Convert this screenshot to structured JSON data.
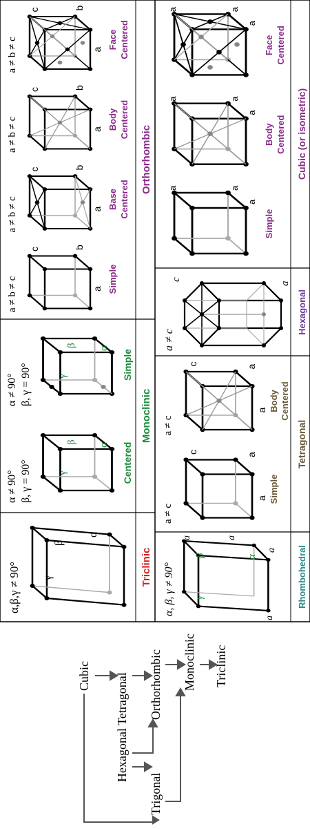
{
  "lattice_table": {
    "triclinic": {
      "name": "Triclinic",
      "condition": "α,β,γ ≠ 90°",
      "angles": {
        "a": "α",
        "b": "β",
        "g": "γ"
      },
      "color": "#d22222"
    },
    "monoclinic": {
      "name": "Monoclinic",
      "color": "#1a8a3a",
      "cells": [
        {
          "label": "Centered",
          "condition_1": "α ≠ 90°",
          "condition_2": "β, γ = 90°",
          "angles": {
            "a": "α",
            "b": "β",
            "g": "γ"
          }
        },
        {
          "label": "Simple",
          "condition_1": "α ≠ 90°",
          "condition_2": "β, γ = 90°",
          "angles": {
            "a": "α",
            "b": "β",
            "g": "γ"
          }
        }
      ]
    },
    "orthorhombic": {
      "name": "Orthorhombic",
      "color": "#8a2a8a",
      "cells": [
        {
          "label_1": "Simple",
          "label_2": "",
          "condition": "a ≠ b ≠ c",
          "axes": {
            "a": "a",
            "b": "b",
            "c": "c"
          }
        },
        {
          "label_1": "Base",
          "label_2": "Centered",
          "condition": "a ≠ b ≠ c",
          "axes": {
            "a": "a",
            "b": "b",
            "c": "c"
          }
        },
        {
          "label_1": "Body",
          "label_2": "Centered",
          "condition": "a ≠ b ≠ c",
          "axes": {
            "a": "a",
            "b": "b",
            "c": "c"
          }
        },
        {
          "label_1": "Face",
          "label_2": "Centered",
          "condition": "a ≠ b ≠ c",
          "axes": {
            "a": "a",
            "b": "b",
            "c": "c"
          }
        }
      ]
    },
    "rhombohedral": {
      "name": "Rhombohedral",
      "condition": "α, β, γ ≠ 90°",
      "angles": {
        "a": "α",
        "b": "β",
        "g": "γ"
      },
      "edges": [
        "a",
        "a",
        "a",
        "a"
      ],
      "color": "#2a8a8a"
    },
    "tetragonal": {
      "name": "Tetragonal",
      "color": "#6a5a3a",
      "cells": [
        {
          "label_1": "Simple",
          "label_2": "",
          "condition": "a ≠ c",
          "axes": {
            "a1": "a",
            "a2": "a",
            "c": "c"
          }
        },
        {
          "label_1": "Body",
          "label_2": "Centered",
          "condition": "a ≠ c",
          "axes": {
            "a1": "a",
            "a2": "a",
            "c": "c"
          }
        }
      ]
    },
    "hexagonal": {
      "name": "Hexagonal",
      "condition": "a ≠ c",
      "axes": {
        "a": "a",
        "c": "c"
      },
      "color": "#6a3a9a"
    },
    "cubic": {
      "name": "Cubic (or isometric)",
      "color": "#8a2a8a",
      "cells": [
        {
          "label_1": "Simple",
          "label_2": "",
          "axes": [
            "a",
            "a",
            "a"
          ]
        },
        {
          "label_1": "Body",
          "label_2": "Centered",
          "axes": [
            "a",
            "a",
            "a"
          ]
        },
        {
          "label_1": "Face",
          "label_2": "Centered",
          "axes": [
            "a",
            "a",
            "a"
          ]
        }
      ]
    }
  },
  "hierarchy": {
    "nodes": {
      "cubic": "Cubic",
      "tetragonal": "Tetragonal",
      "orthorhombic": "Orthorhombic",
      "monoclinic": "Monoclinic",
      "triclinic": "Triclinic",
      "hexagonal": "Hexagonal",
      "trigonal": "Trigonal"
    }
  }
}
